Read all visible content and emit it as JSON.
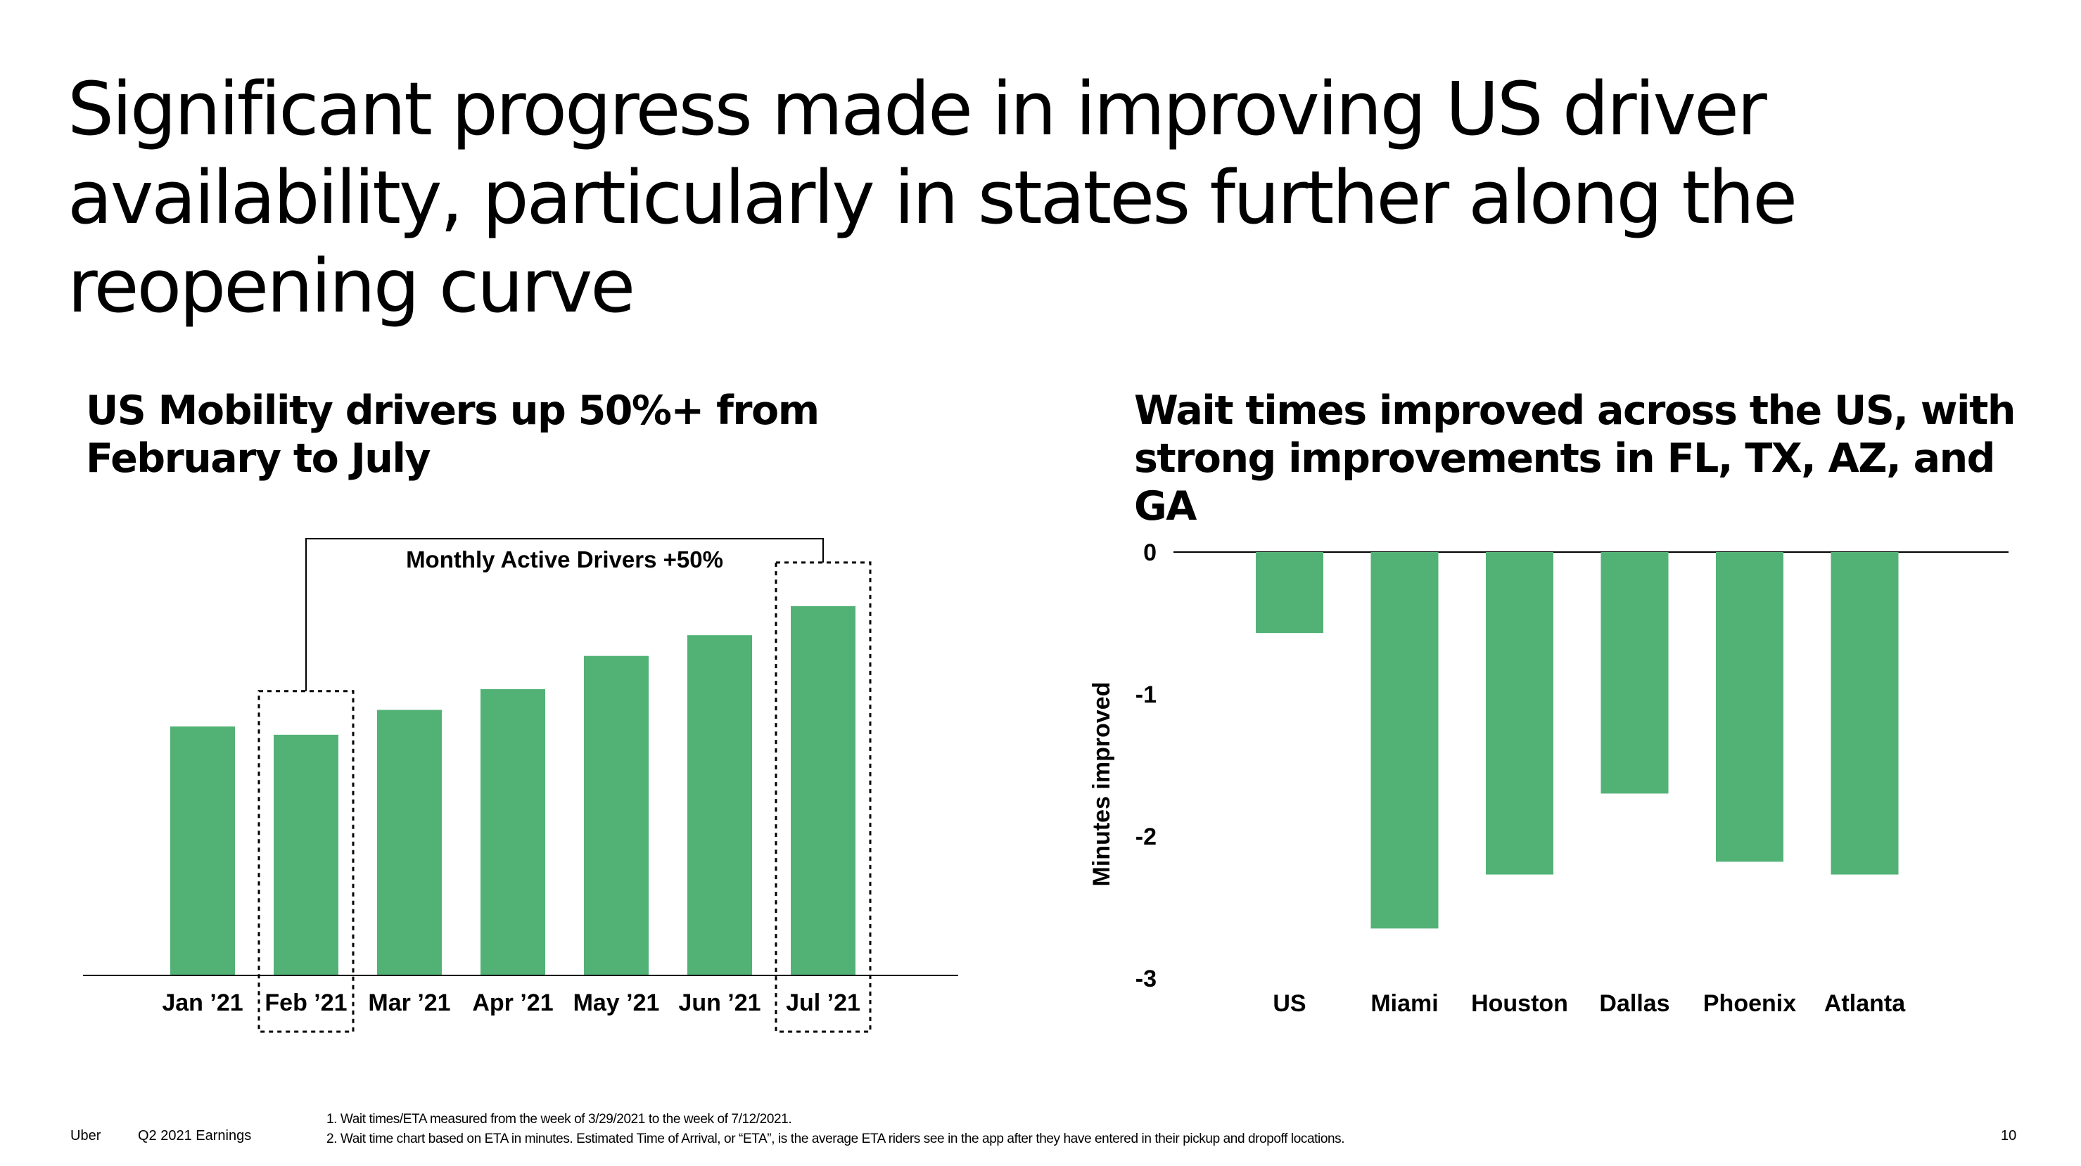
{
  "title": "Significant progress made in improving US driver availability, particularly in states further along the reopening curve",
  "left_subtitle": "US Mobility drivers up 50%+ from February to July",
  "right_subtitle": "Wait times improved across the US, with strong improvements in FL, TX, AZ, and GA",
  "colors": {
    "bar": "#52b276",
    "text": "#000000",
    "axis": "#000000"
  },
  "chart_data": [
    {
      "type": "bar",
      "title": "",
      "annotation": "Monthly Active Drivers +50%",
      "categories": [
        "Jan ’21",
        "Feb ’21",
        "Mar ’21",
        "Apr ’21",
        "May ’21",
        "Jun ’21",
        "Jul ’21"
      ],
      "values": [
        60,
        58,
        64,
        69,
        77,
        82,
        89
      ],
      "highlighted_categories": [
        "Feb ’21",
        "Jul ’21"
      ],
      "xlabel": "",
      "ylabel": "",
      "ylim": [
        0,
        100
      ],
      "grid": false
    },
    {
      "type": "bar",
      "title": "",
      "categories": [
        "US",
        "Miami",
        "Houston",
        "Dallas",
        "Phoenix",
        "Atlanta"
      ],
      "values": [
        -0.57,
        -2.65,
        -2.27,
        -1.7,
        -2.18,
        -2.27
      ],
      "yticks": [
        0,
        -1,
        -2,
        -3
      ],
      "ytick_labels": [
        "0",
        "-1",
        "-2",
        "-3"
      ],
      "ylabel": "Minutes improved",
      "xlabel": "",
      "ylim": [
        -3,
        0
      ],
      "grid": false
    }
  ],
  "footer": {
    "brand": "Uber",
    "quarter": "Q2 2021 Earnings",
    "note1": "1. Wait times/ETA measured from the week of 3/29/2021 to the week of 7/12/2021.",
    "note2": "2. Wait time chart based on ETA in minutes. Estimated Time of Arrival, or “ETA”, is the average ETA riders see in the app after they have entered in their pickup and dropoff locations.",
    "page": "10"
  }
}
